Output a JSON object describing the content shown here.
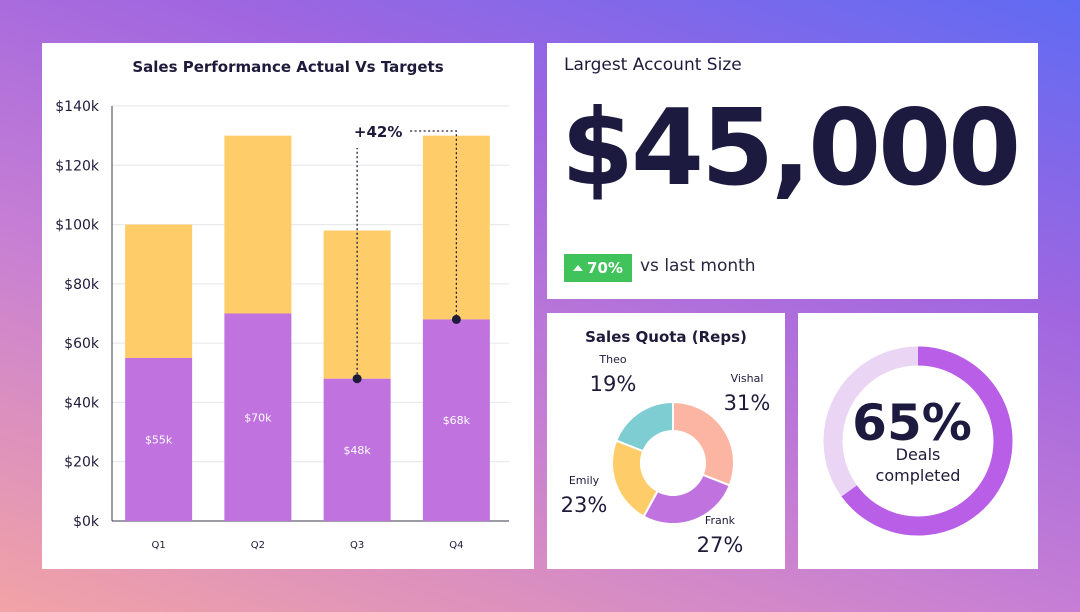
{
  "colors": {
    "actual": "#c072df",
    "target": "#fecd6a",
    "dark": "#1e1a3a",
    "grid": "#e6e6ea",
    "positive": "#3fc35a",
    "deals_track": "#ead5f4",
    "deals_fill": "#b95ee6"
  },
  "chart_data": [
    {
      "type": "bar",
      "title": "Sales Performance Actual Vs Targets",
      "categories": [
        "Q1",
        "Q2",
        "Q3",
        "Q4"
      ],
      "series": [
        {
          "values": [
            55,
            70,
            48,
            68
          ]
        },
        {
          "values": [
            100,
            130,
            98,
            130
          ]
        }
      ],
      "bar_labels": [
        "$55k",
        "$70k",
        "$48k",
        "$68k"
      ],
      "y_ticks": [
        "$0k",
        "$20k",
        "$40k",
        "$60k",
        "$80k",
        "$100k",
        "$120k",
        "$140k"
      ],
      "ylim": [
        0,
        140
      ],
      "grid": true,
      "annotation": {
        "text": "+42%",
        "from_category": "Q3",
        "from_value": 48,
        "to_category": "Q4",
        "to_value": 68
      }
    },
    {
      "type": "pie",
      "title": "Sales Quota (Reps)",
      "slices": [
        {
          "label": "Vishal",
          "value": 31,
          "display": "31%",
          "color": "#fcb5a3"
        },
        {
          "label": "Frank",
          "value": 27,
          "display": "27%",
          "color": "#c072df"
        },
        {
          "label": "Emily",
          "value": 23,
          "display": "23%",
          "color": "#fecd6a"
        },
        {
          "label": "Theo",
          "value": 19,
          "display": "19%",
          "color": "#7ecdd2"
        }
      ]
    }
  ],
  "largest_account": {
    "title": "Largest Account Size",
    "value": "$45,000",
    "change": "70%",
    "change_text": "vs last month"
  },
  "deals": {
    "percent_value": 65,
    "percent": "65%",
    "label_line1": "Deals",
    "label_line2": "completed"
  }
}
